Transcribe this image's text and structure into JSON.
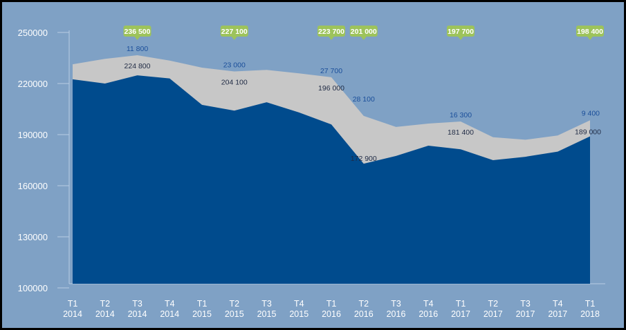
{
  "chart_data": {
    "type": "area",
    "title": "",
    "xlabel": "",
    "ylabel": "",
    "ylim": [
      100000,
      250000
    ],
    "yticks": [
      "100000",
      "130000",
      "160000",
      "190000",
      "220000",
      "250000"
    ],
    "grid": false,
    "categories": [
      [
        "T1",
        "2014"
      ],
      [
        "T2",
        "2014"
      ],
      [
        "T3",
        "2014"
      ],
      [
        "T4",
        "2014"
      ],
      [
        "T1",
        "2015"
      ],
      [
        "T2",
        "2015"
      ],
      [
        "T3",
        "2015"
      ],
      [
        "T4",
        "2015"
      ],
      [
        "T1",
        "2016"
      ],
      [
        "T2",
        "2016"
      ],
      [
        "T3",
        "2016"
      ],
      [
        "T4",
        "2016"
      ],
      [
        "T1",
        "2017"
      ],
      [
        "T2",
        "2017"
      ],
      [
        "T3",
        "2017"
      ],
      [
        "T4",
        "2017"
      ],
      [
        "T1",
        "2018"
      ]
    ],
    "series": [
      {
        "values": [
          222500,
          220000,
          224800,
          223000,
          207500,
          204100,
          209000,
          203000,
          196000,
          172900,
          177500,
          183500,
          181400,
          175000,
          177000,
          180000,
          189000
        ],
        "color": "#004b8d",
        "labels": [
          {
            "index": 2,
            "text": "224 800"
          },
          {
            "index": 5,
            "text": "204 100"
          },
          {
            "index": 8,
            "text": "196 000"
          },
          {
            "index": 9,
            "text": "172 900"
          },
          {
            "index": 12,
            "text": "181 400"
          },
          {
            "index": 16,
            "text": "189 000"
          }
        ]
      },
      {
        "values": [
          8800,
          14500,
          11800,
          10500,
          21800,
          23000,
          19000,
          23000,
          27700,
          28100,
          17000,
          13000,
          16300,
          13500,
          10000,
          9500,
          9400
        ],
        "color": "#c7c7c7",
        "labels": [
          {
            "index": 2,
            "text": "11 800"
          },
          {
            "index": 5,
            "text": "23 000"
          },
          {
            "index": 8,
            "text": "27 700"
          },
          {
            "index": 9,
            "text": "28 100"
          },
          {
            "index": 12,
            "text": "16 300"
          },
          {
            "index": 16,
            "text": "9 400"
          }
        ]
      }
    ],
    "totals": [
      {
        "index": 2,
        "text": "236 500"
      },
      {
        "index": 5,
        "text": "227 100"
      },
      {
        "index": 8,
        "text": "223 700"
      },
      {
        "index": 9,
        "text": "201 000"
      },
      {
        "index": 12,
        "text": "197 700"
      },
      {
        "index": 16,
        "text": "198 400"
      }
    ],
    "colors": {
      "background": "#7fa1c5",
      "badge": "#9dc35b",
      "series1_label": "#1f2a44",
      "series2_label": "#1a4e9a"
    }
  }
}
